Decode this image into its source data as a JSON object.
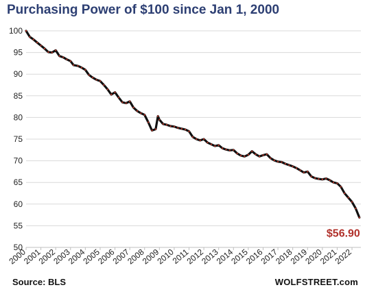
{
  "chart_data": {
    "type": "line",
    "title": "Purchasing Power of $100 since Jan 1, 2000",
    "source": "Source: BLS",
    "brand": "WOLFSTREET.com",
    "end_label": "$56.90",
    "xlabel": "",
    "ylabel": "",
    "ylim": [
      50,
      100
    ],
    "xlim": [
      2000,
      2022.6
    ],
    "y_ticks": [
      50,
      55,
      60,
      65,
      70,
      75,
      80,
      85,
      90,
      95,
      100
    ],
    "x_ticks": [
      2000,
      2001,
      2002,
      2003,
      2004,
      2005,
      2006,
      2007,
      2008,
      2009,
      2010,
      2011,
      2012,
      2013,
      2014,
      2015,
      2016,
      2017,
      2018,
      2019,
      2020,
      2021,
      2022
    ],
    "grid": true,
    "colors": {
      "line": "#111111",
      "markers": "#c0392b",
      "end_label": "#b0302a",
      "grid": "#d9d9d9"
    },
    "series": [
      {
        "x": [
          2000.0,
          2000.25,
          2000.5,
          2000.75,
          2001.0,
          2001.25,
          2001.5,
          2001.75,
          2002.0,
          2002.25,
          2002.5,
          2002.75,
          2003.0,
          2003.2,
          2003.5,
          2003.75,
          2004.0,
          2004.25,
          2004.5,
          2004.75,
          2005.0,
          2005.25,
          2005.5,
          2005.75,
          2006.0,
          2006.25,
          2006.5,
          2006.75,
          2007.0,
          2007.25,
          2007.5,
          2007.75,
          2008.0,
          2008.25,
          2008.5,
          2008.75,
          2008.9,
          2009.0,
          2009.25,
          2009.5,
          2009.75,
          2010.0,
          2010.25,
          2010.5,
          2010.75,
          2011.0,
          2011.25,
          2011.5,
          2011.75,
          2012.0,
          2012.25,
          2012.5,
          2012.75,
          2013.0,
          2013.25,
          2013.5,
          2013.75,
          2014.0,
          2014.25,
          2014.5,
          2014.75,
          2015.0,
          2015.25,
          2015.5,
          2015.75,
          2016.0,
          2016.25,
          2016.5,
          2016.75,
          2017.0,
          2017.25,
          2017.5,
          2017.75,
          2018.0,
          2018.25,
          2018.5,
          2018.75,
          2019.0,
          2019.25,
          2019.5,
          2019.75,
          2020.0,
          2020.25,
          2020.5,
          2020.75,
          2021.0,
          2021.25,
          2021.5,
          2021.75,
          2022.0,
          2022.25,
          2022.5
        ],
        "values": [
          100.0,
          98.6,
          98.0,
          97.3,
          96.6,
          95.9,
          95.1,
          95.0,
          95.5,
          94.2,
          93.9,
          93.4,
          93.0,
          92.1,
          91.9,
          91.5,
          91.0,
          89.8,
          89.2,
          88.7,
          88.4,
          87.5,
          86.5,
          85.3,
          85.8,
          84.6,
          83.5,
          83.3,
          83.7,
          82.3,
          81.5,
          81.0,
          80.6,
          78.9,
          77.0,
          77.3,
          80.3,
          79.5,
          78.5,
          78.3,
          78.0,
          77.9,
          77.6,
          77.4,
          77.2,
          76.8,
          75.5,
          75.0,
          74.7,
          75.0,
          74.2,
          73.8,
          73.4,
          73.6,
          72.9,
          72.6,
          72.4,
          72.5,
          71.7,
          71.2,
          71.0,
          71.4,
          72.2,
          71.5,
          71.0,
          71.3,
          71.5,
          70.6,
          70.1,
          69.8,
          69.7,
          69.3,
          69.0,
          68.7,
          68.3,
          67.8,
          67.3,
          67.5,
          66.4,
          66.0,
          65.8,
          65.7,
          65.9,
          65.5,
          65.0,
          64.8,
          64.0,
          62.5,
          61.5,
          60.5,
          59.0,
          56.9
        ]
      }
    ]
  }
}
